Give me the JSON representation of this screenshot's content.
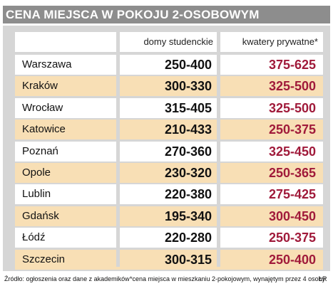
{
  "title": "CENA MIEJSCA W POKOJU 2-OSOBOWYM",
  "chart_data": {
    "type": "table",
    "columns": [
      "domy studenckie",
      "kwatery prywatne*"
    ],
    "rows": [
      {
        "city": "Warszawa",
        "domy": "250-400",
        "kwatery": "375-625"
      },
      {
        "city": "Kraków",
        "domy": "300-330",
        "kwatery": "325-500"
      },
      {
        "city": "Wrocław",
        "domy": "315-405",
        "kwatery": "325-500"
      },
      {
        "city": "Katowice",
        "domy": "210-433",
        "kwatery": "250-375"
      },
      {
        "city": "Poznań",
        "domy": "270-360",
        "kwatery": "325-450"
      },
      {
        "city": "Opole",
        "domy": "230-320",
        "kwatery": "250-365"
      },
      {
        "city": "Lublin",
        "domy": "220-380",
        "kwatery": "275-425"
      },
      {
        "city": "Gdańsk",
        "domy": "195-340",
        "kwatery": "300-450"
      },
      {
        "city": "Łódź",
        "domy": "220-280",
        "kwatery": "250-375"
      },
      {
        "city": "Szczecin",
        "domy": "300-315",
        "kwatery": "250-400"
      }
    ]
  },
  "footer": {
    "source": "Źródło: ogłoszenia oraz dane z akademików",
    "note": "*cena miejsca w mieszkaniu 2-pokojowym, wynajętym przez 4 osoby",
    "credit": "ŁR"
  },
  "colors": {
    "title_bar": "#8d8d8d",
    "panel": "#d6d6d6",
    "row_alt": "#f8dfb5",
    "accent_value": "#a01a3a"
  }
}
